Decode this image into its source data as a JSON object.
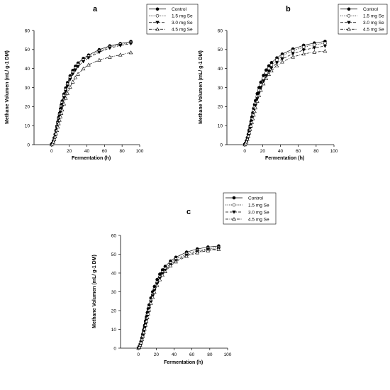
{
  "chart_data": [
    {
      "type": "line",
      "panel_label": "a",
      "xlabel": "Fermentation (h)",
      "ylabel": "Methane Volumen  (mL/ g-1 DM)",
      "xlim": [
        -20,
        100
      ],
      "ylim": [
        0,
        60
      ],
      "xticks": [
        0,
        20,
        40,
        60,
        80,
        100
      ],
      "yticks": [
        0,
        10,
        20,
        30,
        40,
        50,
        60
      ],
      "legend_position": "top-right",
      "x": [
        0,
        1,
        2,
        3,
        4,
        5,
        6,
        7,
        8,
        9,
        10,
        11,
        12,
        14,
        16,
        18,
        21,
        24,
        27,
        30,
        36,
        42,
        54,
        66,
        78,
        90
      ],
      "series": [
        {
          "name": "Control",
          "marker": "filled-circle",
          "dash": "solid",
          "values": [
            0,
            0.8,
            2.0,
            3.6,
            5.5,
            7.6,
            9.8,
            12.0,
            14.3,
            16.5,
            18.8,
            20.9,
            22.9,
            26.6,
            29.8,
            32.6,
            36.2,
            39.0,
            41.2,
            42.9,
            45.3,
            47.1,
            49.9,
            51.9,
            53.1,
            54.2
          ]
        },
        {
          "name": "1.5 mg Se",
          "marker": "open-circle",
          "dash": "dotted",
          "values": [
            0,
            0.7,
            1.9,
            3.4,
            5.2,
            7.2,
            9.3,
            11.4,
            13.6,
            15.8,
            18.0,
            20.1,
            22.1,
            25.7,
            28.9,
            31.7,
            35.2,
            38.0,
            40.2,
            42.0,
            44.5,
            46.4,
            49.2,
            51.3,
            52.6,
            53.6
          ]
        },
        {
          "name": "3.0 mg Se",
          "marker": "filled-triangle-down",
          "dash": "dashed",
          "values": [
            0,
            0.6,
            1.7,
            3.2,
            4.9,
            6.8,
            8.8,
            10.8,
            12.9,
            15.0,
            17.1,
            19.2,
            21.2,
            24.8,
            28.0,
            30.8,
            34.3,
            37.1,
            39.3,
            41.1,
            43.7,
            45.7,
            48.6,
            50.8,
            52.1,
            53.1
          ]
        },
        {
          "name": "4.5 mg Se",
          "marker": "open-triangle-up",
          "dash": "dash-dot",
          "values": [
            0,
            0.5,
            1.4,
            2.7,
            4.2,
            5.8,
            7.5,
            9.3,
            11.1,
            12.9,
            14.7,
            16.5,
            18.3,
            21.5,
            24.4,
            27.0,
            30.3,
            33.0,
            35.3,
            37.1,
            39.9,
            42.0,
            44.5,
            46.0,
            47.2,
            48.4
          ]
        }
      ]
    },
    {
      "type": "line",
      "panel_label": "b",
      "xlabel": "Fermentation (h)",
      "ylabel": "Methane Volumen  (mL/ g-1 DM)",
      "xlim": [
        -20,
        100
      ],
      "ylim": [
        0,
        60
      ],
      "xticks": [
        0,
        20,
        40,
        60,
        80,
        100
      ],
      "yticks": [
        0,
        10,
        20,
        30,
        40,
        50,
        60
      ],
      "legend_position": "top-right",
      "x": [
        0,
        1,
        2,
        3,
        4,
        5,
        6,
        7,
        8,
        9,
        10,
        11,
        12,
        14,
        16,
        18,
        21,
        24,
        27,
        30,
        36,
        42,
        54,
        66,
        78,
        90
      ],
      "series": [
        {
          "name": "Control",
          "marker": "filled-circle",
          "dash": "solid",
          "values": [
            0,
            0.8,
            2.1,
            3.7,
            5.6,
            7.7,
            9.9,
            12.2,
            14.5,
            16.7,
            19.0,
            21.1,
            23.1,
            26.8,
            30.0,
            32.8,
            36.4,
            39.2,
            41.4,
            43.1,
            45.6,
            47.6,
            50.3,
            52.2,
            53.4,
            54.3
          ]
        },
        {
          "name": "1.5 mg Se",
          "marker": "open-circle",
          "dash": "dotted",
          "values": [
            0,
            0.7,
            1.9,
            3.4,
            5.2,
            7.1,
            9.2,
            11.3,
            13.4,
            15.6,
            17.7,
            19.8,
            21.8,
            25.4,
            28.6,
            31.4,
            34.9,
            37.8,
            40.1,
            41.9,
            44.6,
            46.6,
            49.4,
            51.3,
            52.5,
            53.3
          ]
        },
        {
          "name": "3.0 mg Se",
          "marker": "filled-triangle-down",
          "dash": "dashed",
          "values": [
            0,
            0.6,
            1.7,
            3.1,
            4.8,
            6.6,
            8.6,
            10.6,
            12.6,
            14.6,
            16.7,
            18.7,
            20.6,
            24.1,
            27.2,
            30.0,
            33.4,
            36.2,
            38.5,
            40.3,
            43.0,
            45.0,
            47.8,
            49.7,
            50.9,
            51.8
          ]
        },
        {
          "name": "4.5 mg Se",
          "marker": "open-triangle-up",
          "dash": "dash-dot",
          "values": [
            0,
            0.6,
            1.5,
            2.9,
            4.5,
            6.2,
            8.0,
            9.9,
            11.8,
            13.7,
            15.6,
            17.5,
            19.4,
            22.8,
            25.9,
            28.6,
            32.0,
            34.8,
            37.0,
            38.8,
            41.5,
            43.5,
            46.1,
            47.7,
            48.6,
            49.2
          ]
        }
      ]
    },
    {
      "type": "line",
      "panel_label": "c",
      "xlabel": "Fermentation (h)",
      "ylabel": "Methane Volumen  (mL/ g-1 DM)",
      "xlim": [
        -20,
        100
      ],
      "ylim": [
        0,
        60
      ],
      "xticks": [
        0,
        20,
        40,
        60,
        80,
        100
      ],
      "yticks": [
        0,
        10,
        20,
        30,
        40,
        50,
        60
      ],
      "legend_position": "top-left",
      "x": [
        0,
        1,
        2,
        3,
        4,
        5,
        6,
        7,
        8,
        9,
        10,
        11,
        12,
        14,
        16,
        18,
        21,
        24,
        27,
        30,
        36,
        42,
        54,
        66,
        78,
        90
      ],
      "series": [
        {
          "name": "Control",
          "marker": "filled-circle",
          "dash": "solid",
          "values": [
            0,
            0.7,
            2.0,
            3.6,
            5.5,
            7.6,
            9.8,
            12.1,
            14.4,
            16.6,
            18.9,
            21.0,
            23.0,
            26.7,
            30.0,
            32.8,
            36.5,
            39.4,
            41.7,
            43.5,
            46.3,
            48.4,
            51.1,
            52.8,
            53.8,
            54.4
          ]
        },
        {
          "name": "1.5 mg Se",
          "marker": "open-circle",
          "dash": "dotted",
          "values": [
            0,
            0.6,
            1.8,
            3.3,
            5.1,
            7.0,
            9.1,
            11.2,
            13.3,
            15.5,
            17.6,
            19.7,
            21.7,
            25.3,
            28.5,
            31.4,
            35.0,
            38.0,
            40.4,
            42.3,
            45.2,
            47.4,
            50.2,
            51.9,
            52.9,
            53.5
          ]
        },
        {
          "name": "3.0 mg Se",
          "marker": "filled-triangle-down",
          "dash": "dashed",
          "values": [
            0,
            0.6,
            1.7,
            3.1,
            4.8,
            6.7,
            8.7,
            10.7,
            12.8,
            14.9,
            17.0,
            19.0,
            21.0,
            24.6,
            27.8,
            30.6,
            34.2,
            37.2,
            39.6,
            41.5,
            44.4,
            46.6,
            49.5,
            51.3,
            52.4,
            53.0
          ]
        },
        {
          "name": "4.5 mg Se",
          "marker": "open-triangle-up",
          "dash": "dash-dot",
          "values": [
            0,
            0.5,
            1.6,
            2.9,
            4.6,
            6.4,
            8.3,
            10.3,
            12.3,
            14.3,
            16.3,
            18.3,
            20.3,
            23.9,
            27.1,
            29.9,
            33.5,
            36.5,
            38.9,
            40.8,
            43.8,
            46.0,
            48.9,
            50.8,
            51.9,
            52.6
          ]
        }
      ]
    }
  ]
}
